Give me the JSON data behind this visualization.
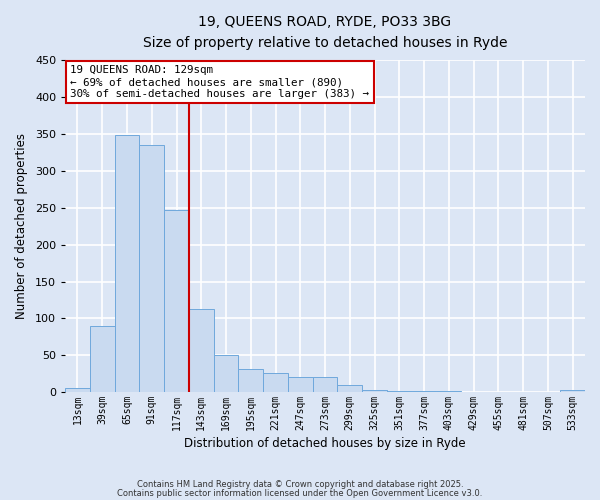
{
  "title_line1": "19, QUEENS ROAD, RYDE, PO33 3BG",
  "title_line2": "Size of property relative to detached houses in Ryde",
  "xlabel": "Distribution of detached houses by size in Ryde",
  "ylabel": "Number of detached properties",
  "categories": [
    "13sqm",
    "39sqm",
    "65sqm",
    "91sqm",
    "117sqm",
    "143sqm",
    "169sqm",
    "195sqm",
    "221sqm",
    "247sqm",
    "273sqm",
    "299sqm",
    "325sqm",
    "351sqm",
    "377sqm",
    "403sqm",
    "429sqm",
    "455sqm",
    "481sqm",
    "507sqm",
    "533sqm"
  ],
  "values": [
    6,
    89,
    349,
    335,
    247,
    113,
    50,
    31,
    26,
    21,
    20,
    9,
    3,
    2,
    1,
    1,
    0,
    0,
    0,
    0,
    3
  ],
  "bar_color": "#c9daf0",
  "bar_edge_color": "#6fa8dc",
  "vline_x_index": 4.5,
  "vline_color": "#cc0000",
  "ylim": [
    0,
    450
  ],
  "yticks": [
    0,
    50,
    100,
    150,
    200,
    250,
    300,
    350,
    400,
    450
  ],
  "annotation_title": "19 QUEENS ROAD: 129sqm",
  "annotation_line1": "← 69% of detached houses are smaller (890)",
  "annotation_line2": "30% of semi-detached houses are larger (383) →",
  "annotation_box_color": "#ffffff",
  "annotation_box_edge": "#cc0000",
  "footnote1": "Contains HM Land Registry data © Crown copyright and database right 2025.",
  "footnote2": "Contains public sector information licensed under the Open Government Licence v3.0.",
  "background_color": "#dce6f5",
  "plot_bg_color": "#dce6f5",
  "grid_color": "#ffffff"
}
